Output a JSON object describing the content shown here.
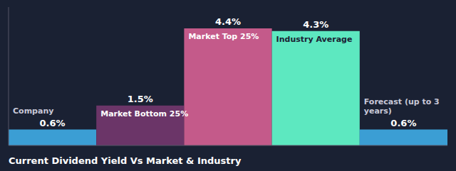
{
  "chart_data": {
    "type": "bar",
    "title": "Current Dividend Yield Vs Market & Industry",
    "categories": [
      "Company",
      "Market Bottom 25%",
      "Market Top 25%",
      "Industry Average",
      "Forecast (up to 3\nyears)"
    ],
    "values": [
      0.6,
      1.5,
      4.4,
      4.3,
      0.6
    ],
    "value_labels": [
      "0.6%",
      "1.5%",
      "4.4%",
      "4.3%",
      "0.6%"
    ],
    "data_labels": true,
    "colors": [
      "#3b9ed4",
      "#6b3568",
      "#c45a8a",
      "#5de8c0",
      "#3b9ed4"
    ],
    "ylim": [
      0,
      5.2
    ],
    "tick_labels": false,
    "grid": false
  }
}
